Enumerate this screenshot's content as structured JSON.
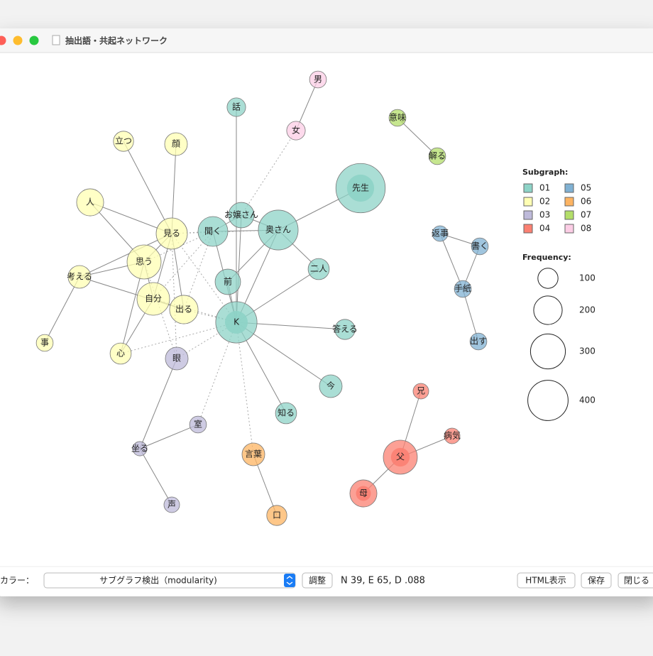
{
  "window": {
    "title": "抽出語・共起ネットワーク"
  },
  "network": {
    "nodes": [
      {
        "label": "先生",
        "subgraph": "01",
        "frequency": 600
      },
      {
        "label": "奥さん",
        "subgraph": "01",
        "frequency": 390
      },
      {
        "label": "K",
        "subgraph": "01",
        "frequency": 420
      },
      {
        "label": "父",
        "subgraph": "04",
        "frequency": 285
      },
      {
        "label": "母",
        "subgraph": "04",
        "frequency": 180
      },
      {
        "label": "思う",
        "subgraph": "02",
        "frequency": 285
      },
      {
        "label": "自分",
        "subgraph": "02",
        "frequency": 262
      },
      {
        "label": "見る",
        "subgraph": "02",
        "frequency": 240
      },
      {
        "label": "人",
        "subgraph": "02",
        "frequency": 180
      },
      {
        "label": "聞く",
        "subgraph": "01",
        "frequency": 219
      },
      {
        "label": "お嬢さん",
        "subgraph": "01",
        "frequency": 160
      },
      {
        "label": "前",
        "subgraph": "01",
        "frequency": 160
      },
      {
        "label": "出る",
        "subgraph": "02",
        "frequency": 200
      },
      {
        "label": "二人",
        "subgraph": "01",
        "frequency": 110
      },
      {
        "label": "今",
        "subgraph": "01",
        "frequency": 127
      },
      {
        "label": "知る",
        "subgraph": "01",
        "frequency": 110
      },
      {
        "label": "顔",
        "subgraph": "02",
        "frequency": 127
      },
      {
        "label": "立つ",
        "subgraph": "02",
        "frequency": 100
      },
      {
        "label": "言葉",
        "subgraph": "06",
        "frequency": 127
      },
      {
        "label": "眼",
        "subgraph": "03",
        "frequency": 127
      },
      {
        "label": "心",
        "subgraph": "02",
        "frequency": 110
      },
      {
        "label": "考える",
        "subgraph": "02",
        "frequency": 127
      },
      {
        "label": "事",
        "subgraph": "02",
        "frequency": 70
      },
      {
        "label": "口",
        "subgraph": "06",
        "frequency": 100
      },
      {
        "label": "話",
        "subgraph": "01",
        "frequency": 85
      },
      {
        "label": "女",
        "subgraph": "08",
        "frequency": 85
      },
      {
        "label": "男",
        "subgraph": "08",
        "frequency": 70
      },
      {
        "label": "意味",
        "subgraph": "07",
        "frequency": 70
      },
      {
        "label": "解る",
        "subgraph": "07",
        "frequency": 70
      },
      {
        "label": "答える",
        "subgraph": "01",
        "frequency": 100
      },
      {
        "label": "返事",
        "subgraph": "05",
        "frequency": 60
      },
      {
        "label": "書く",
        "subgraph": "05",
        "frequency": 70
      },
      {
        "label": "手紙",
        "subgraph": "05",
        "frequency": 70
      },
      {
        "label": "出す",
        "subgraph": "05",
        "frequency": 70
      },
      {
        "label": "兄",
        "subgraph": "04",
        "frequency": 60
      },
      {
        "label": "病気",
        "subgraph": "04",
        "frequency": 60
      },
      {
        "label": "室",
        "subgraph": "03",
        "frequency": 70
      },
      {
        "label": "坐る",
        "subgraph": "03",
        "frequency": 50
      },
      {
        "label": "声",
        "subgraph": "03",
        "frequency": 60
      }
    ]
  },
  "legend": {
    "subgraph_title": "Subgraph:",
    "subgraphs": [
      {
        "label": "01",
        "color": "#8dd3c7"
      },
      {
        "label": "02",
        "color": "#ffffb3"
      },
      {
        "label": "03",
        "color": "#bebada"
      },
      {
        "label": "04",
        "color": "#fb8072"
      },
      {
        "label": "05",
        "color": "#80b1d3"
      },
      {
        "label": "06",
        "color": "#fdb462"
      },
      {
        "label": "07",
        "color": "#b3de69"
      },
      {
        "label": "08",
        "color": "#fccde5"
      }
    ],
    "frequency_title": "Frequency:",
    "frequencies": [
      100,
      200,
      300,
      400
    ]
  },
  "controls": {
    "color_label": "カラー：",
    "color_select": "サブグラフ検出（modularity)",
    "adjust_button": "調整",
    "stats": "N 39, E 65, D .088",
    "html_button": "HTML表示",
    "save_button": "保存",
    "close_button": "閉じる"
  }
}
